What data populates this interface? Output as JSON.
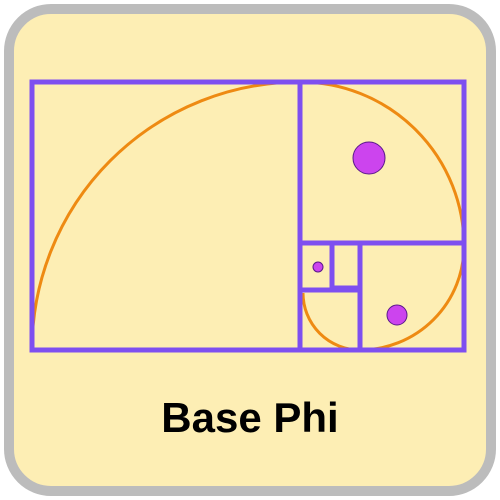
{
  "icon": {
    "caption": "Base Phi",
    "name": "golden-ratio-spiral-icon"
  },
  "colors": {
    "frame_border": "#bcbcbc",
    "frame_fill": "#fdeeb4",
    "rectangle_stroke": "#7e4ff0",
    "spiral_stroke": "#ee8a12",
    "dot_fill": "#cc44ee",
    "dot_stroke": "#5a1a8a",
    "caption_text": "#000000"
  }
}
